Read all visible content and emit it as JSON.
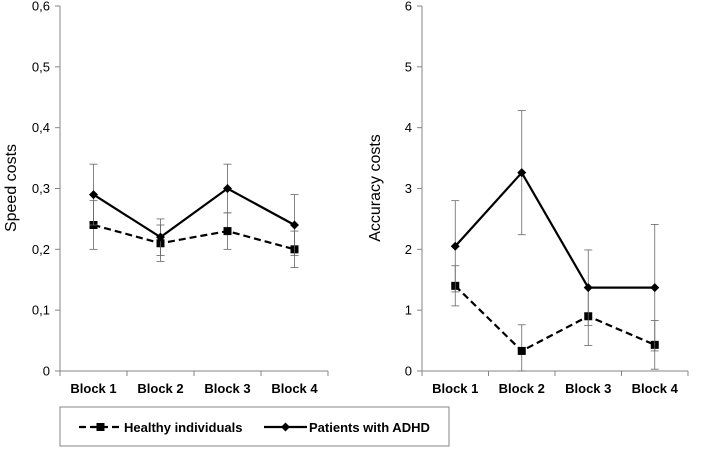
{
  "chart_data": [
    {
      "type": "line",
      "categories": [
        "Block 1",
        "Block 2",
        "Block 3",
        "Block 4"
      ],
      "ylabel": "Speed costs",
      "ylim": [
        0,
        0.6
      ],
      "yticks": [
        "0",
        "0,1",
        "0,2",
        "0,3",
        "0,4",
        "0,5",
        "0,6"
      ],
      "series": [
        {
          "name": "Healthy individuals",
          "style": "dashed",
          "marker": "square",
          "values": [
            0.24,
            0.21,
            0.23,
            0.2
          ],
          "error_low": [
            0.2,
            0.18,
            0.2,
            0.17
          ],
          "error_high": [
            0.28,
            0.24,
            0.26,
            0.23
          ]
        },
        {
          "name": "Patients with ADHD",
          "style": "solid",
          "marker": "diamond",
          "values": [
            0.29,
            0.22,
            0.3,
            0.24
          ],
          "error_low": [
            0.24,
            0.19,
            0.26,
            0.19
          ],
          "error_high": [
            0.34,
            0.25,
            0.34,
            0.29
          ]
        }
      ]
    },
    {
      "type": "line",
      "categories": [
        "Block 1",
        "Block 2",
        "Block 3",
        "Block 4"
      ],
      "ylabel": "Accuracy  costs",
      "ylim": [
        0,
        6
      ],
      "yticks": [
        "0",
        "1",
        "2",
        "3",
        "4",
        "5",
        "6"
      ],
      "series": [
        {
          "name": "Healthy individuals",
          "style": "dashed",
          "marker": "square",
          "values": [
            1.4,
            0.33,
            0.9,
            0.43
          ],
          "error_low": [
            1.07,
            0.0,
            0.42,
            0.03
          ],
          "error_high": [
            1.73,
            0.76,
            1.38,
            0.83
          ]
        },
        {
          "name": "Patients with ADHD",
          "style": "solid",
          "marker": "diamond",
          "values": [
            2.05,
            3.26,
            1.37,
            1.37
          ],
          "error_low": [
            1.3,
            2.24,
            0.75,
            0.33
          ],
          "error_high": [
            2.8,
            4.28,
            1.99,
            2.41
          ]
        }
      ]
    }
  ],
  "legend": {
    "items": [
      {
        "label": "Healthy individuals",
        "style": "dashed",
        "marker": "square"
      },
      {
        "label": "Patients with ADHD",
        "style": "solid",
        "marker": "diamond"
      }
    ]
  }
}
